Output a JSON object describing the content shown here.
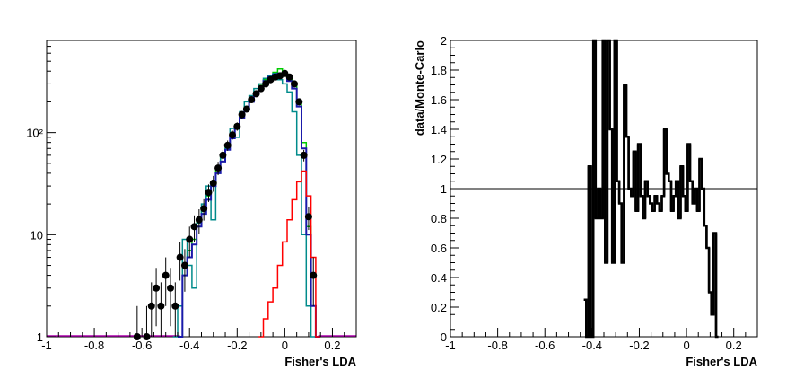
{
  "chart_data": [
    {
      "type": "line",
      "panel": "left",
      "xlabel": "Fisher's LDA",
      "ylabel": "",
      "xlim": [
        -1.0,
        0.3
      ],
      "ylim": [
        1,
        800
      ],
      "ylog": true,
      "x_ticks": [
        -1,
        -0.8,
        -0.6,
        -0.4,
        -0.2,
        0,
        0.2
      ],
      "x_tick_labels": [
        "-1",
        "-0.8",
        "-0.6",
        "-0.4",
        "-0.2",
        "0",
        "0.2"
      ],
      "y_ticks": [
        1,
        10,
        100
      ],
      "y_tick_labels": [
        "1",
        "10",
        "10²"
      ],
      "colors": {
        "green": "#00cc00",
        "cyan": "#008b8b",
        "blue": "#1a1aaa",
        "red": "#ff0000",
        "data": "#000000"
      },
      "series": [
        {
          "color_key": "green",
          "x": [
            -0.44,
            -0.42,
            -0.4,
            -0.38,
            -0.36,
            -0.34,
            -0.32,
            -0.3,
            -0.28,
            -0.26,
            -0.24,
            -0.22,
            -0.2,
            -0.18,
            -0.16,
            -0.14,
            -0.12,
            -0.1,
            -0.08,
            -0.06,
            -0.04,
            -0.02,
            0.0,
            0.02,
            0.04,
            0.06,
            0.08,
            0.1,
            0.12,
            0.14
          ],
          "values": [
            1,
            4,
            7,
            9,
            14,
            18,
            24,
            33,
            44,
            58,
            75,
            95,
            120,
            150,
            180,
            215,
            250,
            290,
            330,
            360,
            390,
            420,
            380,
            340,
            300,
            200,
            80,
            12,
            2,
            1
          ]
        },
        {
          "color_key": "cyan",
          "x": [
            -0.46,
            -0.44,
            -0.42,
            -0.4,
            -0.38,
            -0.36,
            -0.34,
            -0.32,
            -0.3,
            -0.28,
            -0.26,
            -0.24,
            -0.22,
            -0.2,
            -0.18,
            -0.16,
            -0.14,
            -0.12,
            -0.1,
            -0.08,
            -0.06,
            -0.04,
            -0.02,
            0.0,
            0.02,
            0.04,
            0.06,
            0.08,
            0.1,
            0.12
          ],
          "values": [
            1,
            2,
            9,
            5,
            3,
            13,
            20,
            30,
            14,
            40,
            60,
            70,
            110,
            90,
            160,
            200,
            230,
            270,
            300,
            340,
            360,
            380,
            330,
            300,
            250,
            160,
            60,
            10,
            2,
            1
          ]
        },
        {
          "color_key": "blue",
          "x": [
            -0.44,
            -0.42,
            -0.4,
            -0.38,
            -0.36,
            -0.34,
            -0.32,
            -0.3,
            -0.28,
            -0.26,
            -0.24,
            -0.22,
            -0.2,
            -0.18,
            -0.16,
            -0.14,
            -0.12,
            -0.1,
            -0.08,
            -0.06,
            -0.04,
            -0.02,
            0.0,
            0.02,
            0.04,
            0.06,
            0.08,
            0.1,
            0.12,
            0.14
          ],
          "values": [
            1,
            4,
            6,
            8,
            12,
            16,
            22,
            30,
            40,
            52,
            68,
            88,
            110,
            140,
            170,
            200,
            240,
            280,
            320,
            350,
            370,
            380,
            360,
            320,
            270,
            180,
            70,
            10,
            2,
            1
          ]
        },
        {
          "color_key": "red",
          "x": [
            -0.1,
            -0.08,
            -0.06,
            -0.04,
            -0.02,
            0.0,
            0.02,
            0.04,
            0.06,
            0.08,
            0.1,
            0.12,
            0.14
          ],
          "values": [
            1,
            1.5,
            2.2,
            3.0,
            5.0,
            8.5,
            14,
            22,
            33,
            42,
            24,
            6,
            1
          ]
        }
      ],
      "data_points": {
        "color_key": "data",
        "x": [
          -0.62,
          -0.58,
          -0.56,
          -0.54,
          -0.52,
          -0.5,
          -0.48,
          -0.46,
          -0.44,
          -0.42,
          -0.4,
          -0.38,
          -0.36,
          -0.34,
          -0.32,
          -0.3,
          -0.28,
          -0.26,
          -0.24,
          -0.22,
          -0.2,
          -0.18,
          -0.16,
          -0.14,
          -0.12,
          -0.1,
          -0.08,
          -0.06,
          -0.04,
          -0.02,
          0.0,
          0.02,
          0.04,
          0.06,
          0.08,
          0.1,
          0.12
        ],
        "values": [
          1,
          1,
          2,
          3,
          2,
          4,
          3,
          2,
          6,
          5,
          9,
          12,
          14,
          18,
          26,
          32,
          45,
          60,
          75,
          95,
          115,
          150,
          170,
          210,
          240,
          270,
          300,
          330,
          350,
          360,
          380,
          350,
          300,
          200,
          60,
          15,
          4
        ]
      }
    },
    {
      "type": "line",
      "panel": "right",
      "xlabel": "Fisher's LDA",
      "ylabel": "data/Monte-Carlo",
      "xlim": [
        -1.0,
        0.3
      ],
      "ylim": [
        0,
        2
      ],
      "reference_line": 1,
      "x_ticks": [
        -1,
        -0.8,
        -0.6,
        -0.4,
        -0.2,
        0,
        0.2
      ],
      "x_tick_labels": [
        "-1",
        "-0.8",
        "-0.6",
        "-0.4",
        "-0.2",
        "0",
        "0.2"
      ],
      "y_ticks": [
        0,
        0.2,
        0.4,
        0.6,
        0.8,
        1,
        1.2,
        1.4,
        1.6,
        1.8,
        2
      ],
      "y_tick_labels": [
        "0",
        "0.2",
        "0.4",
        "0.6",
        "0.8",
        "1",
        "1.2",
        "1.4",
        "1.6",
        "1.8",
        "2"
      ],
      "color": "#000000",
      "x": [
        -0.43,
        -0.42,
        -0.41,
        -0.4,
        -0.39,
        -0.38,
        -0.37,
        -0.36,
        -0.35,
        -0.34,
        -0.33,
        -0.32,
        -0.31,
        -0.3,
        -0.29,
        -0.28,
        -0.27,
        -0.26,
        -0.25,
        -0.24,
        -0.23,
        -0.22,
        -0.21,
        -0.2,
        -0.19,
        -0.18,
        -0.17,
        -0.16,
        -0.15,
        -0.14,
        -0.13,
        -0.12,
        -0.11,
        -0.1,
        -0.09,
        -0.08,
        -0.07,
        -0.06,
        -0.05,
        -0.04,
        -0.03,
        -0.02,
        -0.01,
        0.0,
        0.01,
        0.02,
        0.03,
        0.04,
        0.05,
        0.06,
        0.07,
        0.08,
        0.09,
        0.1,
        0.11,
        0.12,
        0.13
      ],
      "values": [
        0.25,
        0,
        1.15,
        0,
        2.0,
        0.8,
        1.0,
        0.8,
        2.0,
        0.5,
        2.0,
        1.4,
        0.5,
        2.0,
        1.05,
        0.9,
        0.5,
        1.7,
        1.35,
        1.0,
        0.95,
        1.25,
        0.85,
        1.3,
        0.95,
        0.8,
        1.05,
        0.95,
        0.9,
        0.85,
        0.95,
        0.9,
        0.85,
        0.95,
        1.4,
        1.1,
        1.05,
        0.85,
        0.95,
        1.05,
        0.8,
        1.15,
        0.95,
        0.85,
        1.3,
        1.05,
        0.9,
        1.0,
        0.85,
        1.2,
        1.0,
        0.75,
        0.6,
        0.3,
        0.15,
        0.7,
        0.0
      ]
    }
  ]
}
